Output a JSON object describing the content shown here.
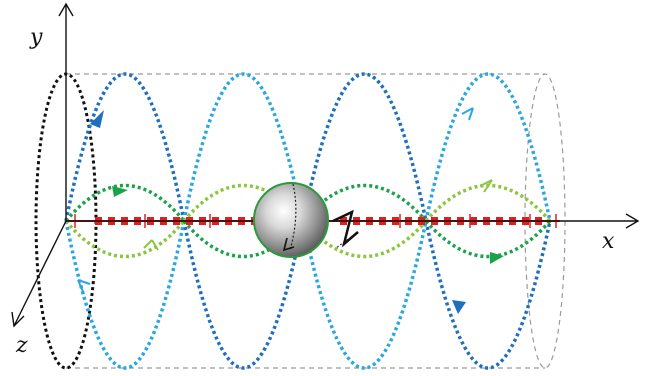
{
  "axes": {
    "x_label": "x",
    "y_label": "y",
    "z_label": "z"
  },
  "colors": {
    "dark_blue": "#1f6fbf",
    "light_blue": "#2aa6e0",
    "dark_green": "#1aa34a",
    "light_green": "#8cc63f",
    "axis_red": "#e02020",
    "cylinder_outline": "#999999",
    "ring_left": "#111111",
    "sphere_rim": "#2a9a3a"
  },
  "icons": {
    "sphere": "gray-sphere-icon",
    "arrows": "flow-direction-arrow-icon"
  }
}
